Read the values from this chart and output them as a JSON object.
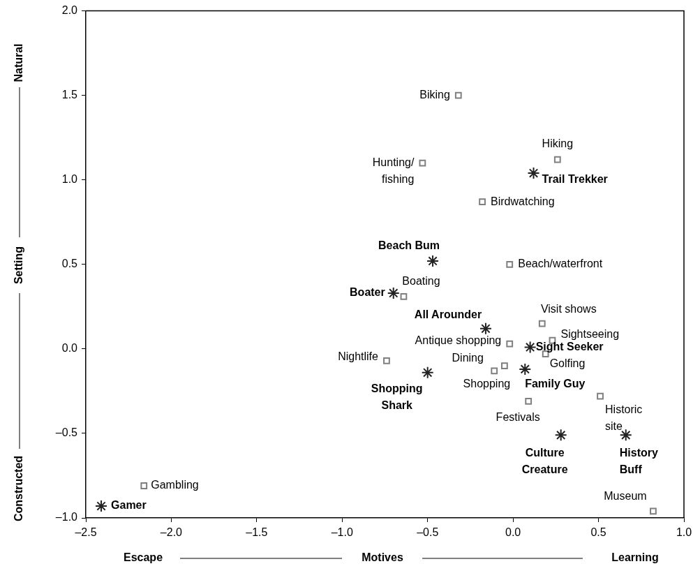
{
  "chart_data": {
    "type": "scatter",
    "xlabel": "Motives",
    "ylabel": "Setting",
    "xlim": [
      -2.5,
      1.0
    ],
    "ylim": [
      -1.0,
      2.0
    ],
    "xticks": [
      {
        "value": -2.5,
        "label": "–2.5"
      },
      {
        "value": -2.0,
        "label": "–2.0"
      },
      {
        "value": -1.5,
        "label": "–1.5"
      },
      {
        "value": -1.0,
        "label": "–1.0"
      },
      {
        "value": -0.5,
        "label": "–0.5"
      },
      {
        "value": 0,
        "label": "0.0"
      },
      {
        "value": 0.5,
        "label": "0.5"
      },
      {
        "value": 1.0,
        "label": "1.0"
      }
    ],
    "yticks": [
      {
        "value": -1.0,
        "label": "–1.0"
      },
      {
        "value": -0.5,
        "label": "–0.5"
      },
      {
        "value": 0,
        "label": "0.0"
      },
      {
        "value": 0.5,
        "label": "0.5"
      },
      {
        "value": 1.0,
        "label": "1.0"
      },
      {
        "value": 1.5,
        "label": "1.5"
      },
      {
        "value": 2.0,
        "label": "2.0"
      }
    ],
    "grid": false,
    "legend": false,
    "series": [
      {
        "color": "#7f7f7f",
        "marker": "square",
        "x": [
          -0.32,
          -0.53,
          0.26,
          -0.18,
          -0.02,
          -0.64,
          0.17,
          0.23,
          -0.02,
          -0.05,
          -0.11,
          0.19,
          -0.74,
          0.09,
          0.51,
          0.82,
          -2.16
        ],
        "values": [
          1.5,
          1.1,
          1.12,
          0.87,
          0.5,
          0.31,
          0.15,
          0.05,
          0.03,
          -0.1,
          -0.13,
          -0.03,
          -0.07,
          -0.31,
          -0.28,
          -0.96,
          -0.81
        ]
      },
      {
        "color": "#222222",
        "marker": "cross",
        "x": [
          0.12,
          -0.47,
          -0.7,
          -0.16,
          0.1,
          -0.5,
          0.07,
          0.28,
          0.66,
          -2.41
        ],
        "values": [
          1.04,
          0.52,
          0.33,
          0.12,
          0.01,
          -0.14,
          -0.12,
          -0.51,
          -0.51,
          -0.93
        ]
      }
    ],
    "annotations": [
      {
        "text": "Biking",
        "x": -0.32,
        "y": 1.5
      },
      {
        "text": "Hunting/\nfishing",
        "x": -0.53,
        "y": 1.1
      },
      {
        "text": "Hiking",
        "x": 0.26,
        "y": 1.12
      },
      {
        "text": "Birdwatching",
        "x": -0.18,
        "y": 0.87
      },
      {
        "text": "Beach/waterfront",
        "x": -0.02,
        "y": 0.5
      },
      {
        "text": "Boating",
        "x": -0.64,
        "y": 0.31
      },
      {
        "text": "Visit shows",
        "x": 0.17,
        "y": 0.15
      },
      {
        "text": "Sightseeing",
        "x": 0.23,
        "y": 0.05
      },
      {
        "text": "Antique shopping",
        "x": -0.02,
        "y": 0.03
      },
      {
        "text": "Dining",
        "x": -0.05,
        "y": -0.1
      },
      {
        "text": "Shopping",
        "x": -0.11,
        "y": -0.13
      },
      {
        "text": "Golfing",
        "x": 0.19,
        "y": -0.03
      },
      {
        "text": "Nightlife",
        "x": -0.74,
        "y": -0.07
      },
      {
        "text": "Festivals",
        "x": 0.09,
        "y": -0.31
      },
      {
        "text": "Historic\nsite",
        "x": 0.51,
        "y": -0.28
      },
      {
        "text": "Museum",
        "x": 0.82,
        "y": -0.96
      },
      {
        "text": "Gambling",
        "x": -2.16,
        "y": -0.81
      },
      {
        "text": "Trail Trekker",
        "x": 0.12,
        "y": 1.04
      },
      {
        "text": "Beach Bum",
        "x": -0.47,
        "y": 0.52
      },
      {
        "text": "Boater",
        "x": -0.7,
        "y": 0.33
      },
      {
        "text": "All Arounder",
        "x": -0.16,
        "y": 0.12
      },
      {
        "text": "Sight Seeker",
        "x": 0.1,
        "y": 0.01
      },
      {
        "text": "Shopping\nShark",
        "x": -0.5,
        "y": -0.14
      },
      {
        "text": "Family Guy",
        "x": 0.07,
        "y": -0.12
      },
      {
        "text": "Culture\nCreature",
        "x": 0.28,
        "y": -0.51
      },
      {
        "text": "History\nBuff",
        "x": 0.66,
        "y": -0.51
      },
      {
        "text": "Gamer",
        "x": -2.41,
        "y": -0.93
      },
      "Escape",
      "Learning",
      "Natural",
      "Constructed"
    ]
  }
}
